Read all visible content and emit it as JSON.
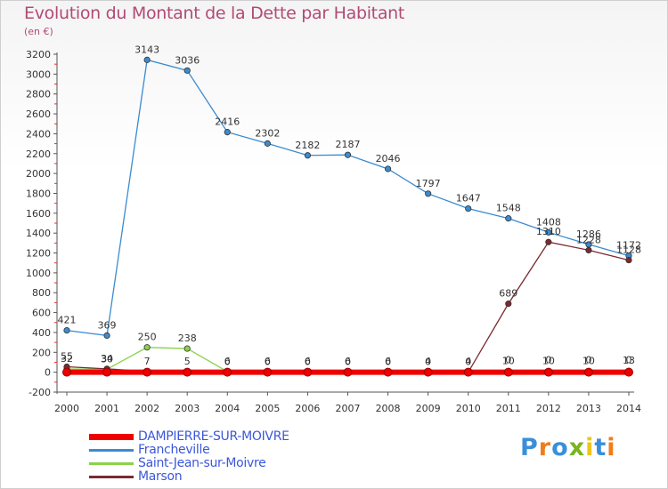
{
  "title": "Evolution du Montant de la Dette par Habitant",
  "subtitle": "(en €)",
  "logo": {
    "text": "Proxiti",
    "colors": [
      "#3a8fd9",
      "#f07d1a",
      "#3a8fd9",
      "#7ab51d",
      "#f0c419",
      "#3a8fd9",
      "#f07d1a"
    ]
  },
  "chart_data": {
    "type": "line",
    "title": "Evolution du Montant de la Dette par Habitant",
    "subtitle": "(en €)",
    "xlabel": "",
    "ylabel": "",
    "categories": [
      "2000",
      "2001",
      "2002",
      "2003",
      "2004",
      "2005",
      "2006",
      "2007",
      "2008",
      "2009",
      "2010",
      "2011",
      "2012",
      "2013",
      "2014"
    ],
    "ylim": [
      -200,
      3200
    ],
    "yticks": [
      -200,
      0,
      200,
      400,
      600,
      800,
      1000,
      1200,
      1400,
      1600,
      1800,
      2000,
      2200,
      2400,
      2600,
      2800,
      3000,
      3200
    ],
    "grid": false,
    "legend_position": "bottom-left",
    "series": [
      {
        "name": "DAMPIERRE-SUR-MOIVRE",
        "color": "#ee0000",
        "values": [
          0,
          0,
          0,
          0,
          0,
          0,
          0,
          0,
          0,
          0,
          0,
          0,
          0,
          0,
          0
        ]
      },
      {
        "name": "Francheville",
        "color": "#3b8bd0",
        "values": [
          421,
          369,
          3143,
          3036,
          2416,
          2302,
          2182,
          2187,
          2046,
          1797,
          1647,
          1548,
          1408,
          1286,
          1172
        ]
      },
      {
        "name": "Saint-Jean-sur-Moivre",
        "color": "#8ad24a",
        "values": [
          32,
          30,
          250,
          238,
          6,
          6,
          6,
          6,
          6,
          4,
          4,
          10,
          10,
          10,
          13
        ]
      },
      {
        "name": "Marson",
        "color": "#7a2a30",
        "values": [
          55,
          34,
          7,
          5,
          0,
          0,
          0,
          0,
          0,
          0,
          0,
          689,
          1310,
          1228,
          1128
        ]
      }
    ],
    "data_labels": [
      {
        "series": "Francheville",
        "labels": [
          "421",
          "369",
          "3143",
          "3036",
          "2416",
          "2302",
          "2182",
          "2187",
          "2046",
          "1797",
          "1647",
          "1548",
          "1408",
          "1286",
          "1172"
        ]
      },
      {
        "series": "Saint-Jean-sur-Moivre",
        "labels": [
          "32",
          "30",
          "250",
          "238",
          "6",
          "6",
          "6",
          "6",
          "6",
          "4",
          "4",
          "10",
          "10",
          "10",
          "13"
        ]
      },
      {
        "series": "Marson",
        "labels": [
          "55",
          "34",
          "7",
          "5",
          "0",
          "0",
          "0",
          "0",
          "0",
          "0",
          "0",
          "689",
          "1310",
          "1228",
          "1128"
        ]
      },
      {
        "series": "DAMPIERRE-SUR-MOIVRE",
        "labels": [
          "",
          "",
          "",
          "",
          "",
          "",
          "",
          "",
          "",
          "",
          "",
          "0",
          "0",
          "0",
          "0"
        ]
      }
    ]
  }
}
